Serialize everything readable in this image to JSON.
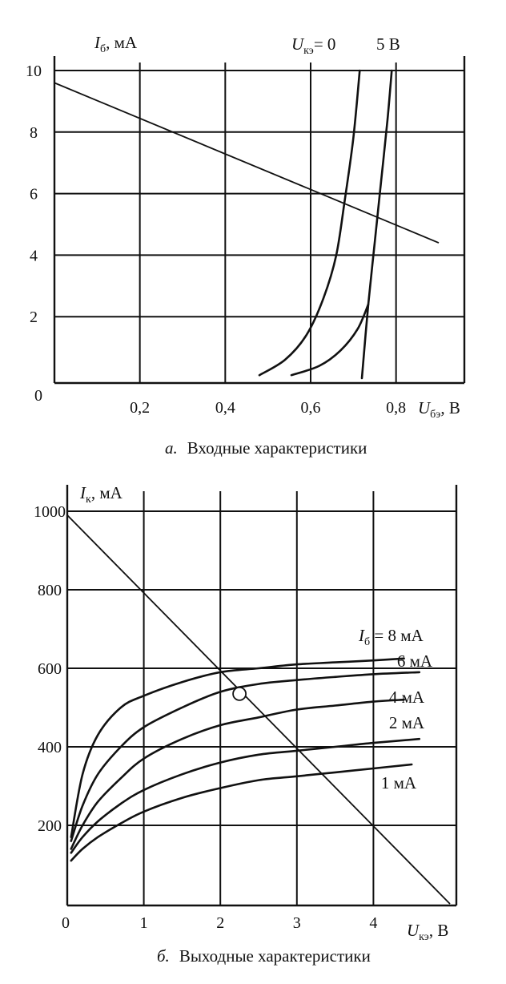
{
  "chart_data": [
    {
      "type": "line",
      "caption_letter": "а.",
      "caption_text": "Входные характеристики",
      "ylabel_main": "I",
      "ylabel_sub": "б",
      "ylabel_unit": ", мА",
      "xlabel_main": "U",
      "xlabel_sub": "бэ",
      "xlabel_unit": ", В",
      "xlim": [
        0,
        0.9
      ],
      "ylim": [
        0,
        10
      ],
      "origin_label": "0",
      "x_ticks": [
        {
          "value": 0.2,
          "label": "0,2"
        },
        {
          "value": 0.4,
          "label": "0,4"
        },
        {
          "value": 0.6,
          "label": "0,6"
        },
        {
          "value": 0.8,
          "label": "0,8"
        }
      ],
      "y_ticks": [
        {
          "value": 2,
          "label": "2"
        },
        {
          "value": 4,
          "label": "4"
        },
        {
          "value": 6,
          "label": "6"
        },
        {
          "value": 8,
          "label": "8"
        },
        {
          "value": 10,
          "label": "10"
        }
      ],
      "grid": true,
      "curve_labels": [
        {
          "main": "U",
          "sub": "кэ",
          "rest": "= 0"
        },
        {
          "main": "",
          "sub": "",
          "rest": "5 В"
        }
      ],
      "series": [
        {
          "points": [
            [
              0.48,
              0.1
            ],
            [
              0.54,
              0.6
            ],
            [
              0.59,
              1.4
            ],
            [
              0.63,
              2.6
            ],
            [
              0.66,
              4.0
            ],
            [
              0.68,
              5.8
            ],
            [
              0.7,
              7.8
            ],
            [
              0.715,
              10.0
            ]
          ]
        },
        {
          "points": [
            [
              0.555,
              0.1
            ],
            [
              0.62,
              0.4
            ],
            [
              0.67,
              0.9
            ],
            [
              0.71,
              1.6
            ],
            [
              0.735,
              2.4
            ]
          ]
        },
        {
          "points": [
            [
              0.72,
              0.0
            ],
            [
              0.735,
              2.4
            ],
            [
              0.75,
              4.4
            ],
            [
              0.765,
              6.4
            ],
            [
              0.78,
              8.4
            ],
            [
              0.79,
              10.0
            ]
          ]
        }
      ],
      "load_line": [
        [
          0.0,
          9.6
        ],
        [
          0.9,
          4.4
        ]
      ]
    },
    {
      "type": "line",
      "caption_letter": "б.",
      "caption_text": "Выходные характеристики",
      "ylabel_main": "I",
      "ylabel_sub": "к",
      "ylabel_unit": ", мА",
      "xlabel_main": "U",
      "xlabel_sub": "кэ",
      "xlabel_unit": ", В",
      "xlim": [
        0,
        5
      ],
      "ylim": [
        0,
        1000
      ],
      "origin_label": "0",
      "x_ticks": [
        {
          "value": 1,
          "label": "1"
        },
        {
          "value": 2,
          "label": "2"
        },
        {
          "value": 3,
          "label": "3"
        },
        {
          "value": 4,
          "label": "4"
        }
      ],
      "y_ticks": [
        {
          "value": 200,
          "label": "200"
        },
        {
          "value": 400,
          "label": "400"
        },
        {
          "value": 600,
          "label": "600"
        },
        {
          "value": 800,
          "label": "800"
        },
        {
          "value": 1000,
          "label": "1000"
        }
      ],
      "grid": true,
      "series": [
        {
          "label_main": "I",
          "label_sub": "б",
          "label_rest": " = 8 мА",
          "points": [
            [
              0.05,
              170
            ],
            [
              0.2,
              330
            ],
            [
              0.4,
              430
            ],
            [
              0.7,
              500
            ],
            [
              1.0,
              530
            ],
            [
              1.5,
              565
            ],
            [
              2.0,
              590
            ],
            [
              2.5,
              600
            ],
            [
              3.0,
              610
            ],
            [
              3.5,
              615
            ],
            [
              4.0,
              620
            ],
            [
              4.4,
              625
            ]
          ]
        },
        {
          "label_main": "",
          "label_sub": "",
          "label_rest": "6 мА",
          "points": [
            [
              0.05,
              160
            ],
            [
              0.2,
              250
            ],
            [
              0.4,
              330
            ],
            [
              0.7,
              400
            ],
            [
              1.0,
              450
            ],
            [
              1.5,
              500
            ],
            [
              2.0,
              540
            ],
            [
              2.5,
              560
            ],
            [
              3.0,
              570
            ],
            [
              3.5,
              578
            ],
            [
              4.0,
              585
            ],
            [
              4.6,
              590
            ]
          ]
        },
        {
          "label_main": "",
          "label_sub": "",
          "label_rest": "4 мА",
          "points": [
            [
              0.05,
              140
            ],
            [
              0.2,
              200
            ],
            [
              0.4,
              260
            ],
            [
              0.7,
              320
            ],
            [
              1.0,
              370
            ],
            [
              1.5,
              420
            ],
            [
              2.0,
              455
            ],
            [
              2.5,
              475
            ],
            [
              3.0,
              495
            ],
            [
              3.5,
              505
            ],
            [
              4.0,
              515
            ],
            [
              4.4,
              520
            ]
          ]
        },
        {
          "label_main": "",
          "label_sub": "",
          "label_rest": "2 мА",
          "points": [
            [
              0.05,
              130
            ],
            [
              0.2,
              170
            ],
            [
              0.4,
              210
            ],
            [
              0.7,
              255
            ],
            [
              1.0,
              290
            ],
            [
              1.5,
              330
            ],
            [
              2.0,
              360
            ],
            [
              2.5,
              380
            ],
            [
              3.0,
              390
            ],
            [
              3.5,
              400
            ],
            [
              4.0,
              410
            ],
            [
              4.6,
              420
            ]
          ]
        },
        {
          "label_main": "",
          "label_sub": "",
          "label_rest": "1 мА",
          "points": [
            [
              0.05,
              110
            ],
            [
              0.2,
              140
            ],
            [
              0.4,
              170
            ],
            [
              0.7,
              205
            ],
            [
              1.0,
              235
            ],
            [
              1.5,
              270
            ],
            [
              2.0,
              295
            ],
            [
              2.5,
              315
            ],
            [
              3.0,
              325
            ],
            [
              3.5,
              335
            ],
            [
              4.0,
              345
            ],
            [
              4.5,
              355
            ]
          ]
        }
      ],
      "load_line": [
        [
          0,
          990
        ],
        [
          5,
          0
        ]
      ],
      "operating_point": [
        2.25,
        535
      ]
    }
  ]
}
